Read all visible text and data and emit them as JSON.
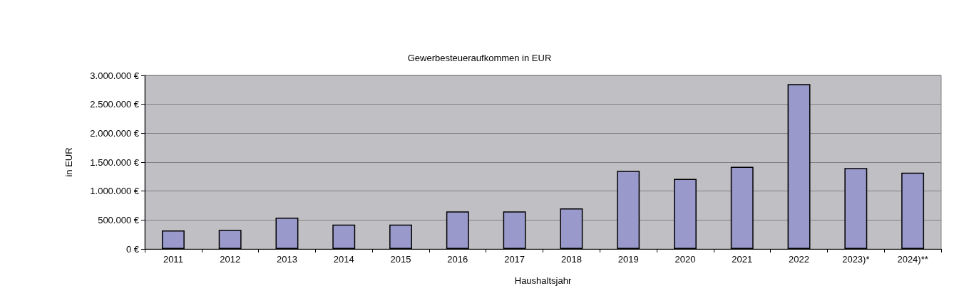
{
  "chart_data": {
    "type": "bar",
    "title": "Gewerbesteueraufkommen in EUR",
    "xlabel": "Haushaltsjahr",
    "ylabel": "in EUR",
    "categories": [
      "2011",
      "2012",
      "2013",
      "2014",
      "2015",
      "2016",
      "2017",
      "2018",
      "2019",
      "2020",
      "2021",
      "2022",
      "2023)*",
      "2024)**"
    ],
    "values": [
      320000,
      330000,
      540000,
      420000,
      420000,
      650000,
      650000,
      700000,
      1350000,
      1210000,
      1420000,
      2850000,
      1400000,
      1320000
    ],
    "color": "#9999cc",
    "ylim": [
      0,
      3000000
    ],
    "yticks": [
      {
        "value": 0,
        "label": "0 €"
      },
      {
        "value": 500000,
        "label": "500.000 €"
      },
      {
        "value": 1000000,
        "label": "1.000.000 €"
      },
      {
        "value": 1500000,
        "label": "1.500.000 €"
      },
      {
        "value": 2000000,
        "label": "2.000.000 €"
      },
      {
        "value": 2500000,
        "label": "2.500.000 €"
      },
      {
        "value": 3000000,
        "label": "3.000.000 €"
      }
    ],
    "grid": "y"
  }
}
